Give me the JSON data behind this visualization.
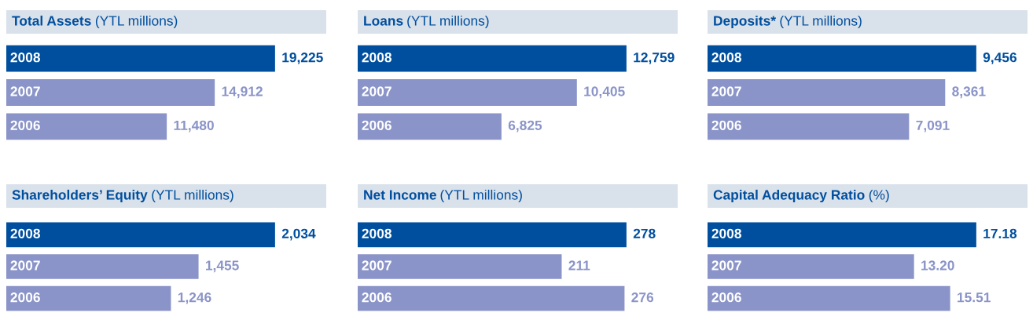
{
  "chart_data": [
    {
      "type": "bar",
      "orientation": "horizontal",
      "title": "Total Assets",
      "subtitle": "(YTL millions)",
      "categories": [
        "2008",
        "2007",
        "2006"
      ],
      "values": [
        19225,
        14912,
        11480
      ],
      "colors": [
        "#004f9f",
        "#8a94c8",
        "#8a94c8"
      ],
      "data_labels": true,
      "value_labels": [
        "19,225",
        "14,912",
        "11,480"
      ]
    },
    {
      "type": "bar",
      "orientation": "horizontal",
      "title": "Loans",
      "subtitle": "(YTL millions)",
      "categories": [
        "2008",
        "2007",
        "2006"
      ],
      "values": [
        12759,
        10405,
        6825
      ],
      "colors": [
        "#004f9f",
        "#8a94c8",
        "#8a94c8"
      ],
      "data_labels": true,
      "value_labels": [
        "12,759",
        "10,405",
        "6,825"
      ]
    },
    {
      "type": "bar",
      "orientation": "horizontal",
      "title": "Deposits*",
      "subtitle": "(YTL millions)",
      "categories": [
        "2008",
        "2007",
        "2006"
      ],
      "values": [
        9456,
        8361,
        7091
      ],
      "colors": [
        "#004f9f",
        "#8a94c8",
        "#8a94c8"
      ],
      "data_labels": true,
      "value_labels": [
        "9,456",
        "8,361",
        "7,091"
      ]
    },
    {
      "type": "bar",
      "orientation": "horizontal",
      "title": "Shareholders’ Equity",
      "subtitle": "(YTL millions)",
      "categories": [
        "2008",
        "2007",
        "2006"
      ],
      "values": [
        2034,
        1455,
        1246
      ],
      "colors": [
        "#004f9f",
        "#8a94c8",
        "#8a94c8"
      ],
      "data_labels": true,
      "value_labels": [
        "2,034",
        "1,455",
        "1,246"
      ]
    },
    {
      "type": "bar",
      "orientation": "horizontal",
      "title": "Net Income",
      "subtitle": "(YTL millions)",
      "categories": [
        "2008",
        "2007",
        "2006"
      ],
      "values": [
        278,
        211,
        276
      ],
      "colors": [
        "#004f9f",
        "#8a94c8",
        "#8a94c8"
      ],
      "data_labels": true,
      "value_labels": [
        "278",
        "211",
        "276"
      ]
    },
    {
      "type": "bar",
      "orientation": "horizontal",
      "title": "Capital Adequacy Ratio",
      "subtitle": "(%)",
      "categories": [
        "2008",
        "2007",
        "2006"
      ],
      "values": [
        17.18,
        13.2,
        15.51
      ],
      "colors": [
        "#004f9f",
        "#8a94c8",
        "#8a94c8"
      ],
      "data_labels": true,
      "value_labels": [
        "17.18",
        "13.20",
        "15.51"
      ]
    }
  ]
}
